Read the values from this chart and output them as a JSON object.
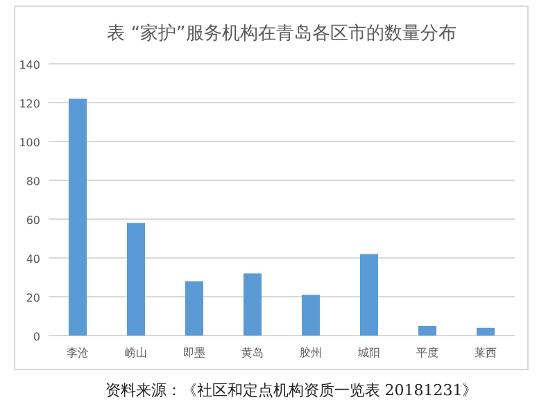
{
  "chart_data": {
    "type": "bar",
    "title": "表 “家护”服务机构在青岛各区市的数量分布",
    "categories": [
      "李沧",
      "崂山",
      "即墨",
      "黄岛",
      "胶州",
      "城阳",
      "平度",
      "莱西"
    ],
    "values": [
      122,
      58,
      28,
      32,
      21,
      42,
      5,
      4
    ],
    "color": "#5b9bd5",
    "ylim": [
      0,
      140
    ],
    "yticks": [
      0,
      20,
      40,
      60,
      80,
      100,
      120,
      140
    ],
    "grid": "y",
    "annotations": [
      "资料来源：《社区和定点机构资质一览表 20181231》"
    ]
  }
}
